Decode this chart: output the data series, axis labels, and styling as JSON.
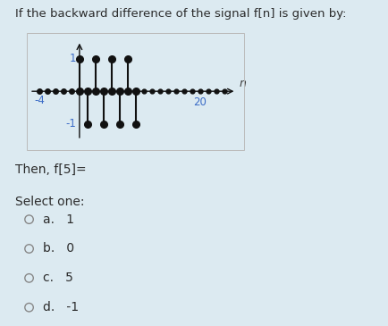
{
  "bg_color": "#dceaf1",
  "plot_bg_color": "#ffffff",
  "title_text": "If the backward difference of the signal f[n] is given by:",
  "title_color": "#2c2c2c",
  "title_fontsize": 9.5,
  "question_text": "Then, f[5]=",
  "select_text": "Select one:",
  "options": [
    {
      "label": "a.",
      "value": "1"
    },
    {
      "label": "b.",
      "value": "0"
    },
    {
      "label": "c.",
      "value": "5"
    },
    {
      "label": "d.",
      "value": "-1"
    }
  ],
  "signal": {
    "stems_up": [
      0,
      2,
      4,
      6
    ],
    "stems_down": [
      1,
      3,
      5,
      7
    ],
    "zero_dots_left": [
      -5,
      -4,
      -3,
      -2,
      -1
    ],
    "zero_dots_right": [
      8,
      9,
      10,
      11,
      12,
      13,
      14,
      15,
      16,
      17,
      18
    ]
  },
  "stem_color": "#111111",
  "dot_color": "#111111",
  "axis_color": "#111111",
  "label_color_blue": "#3b6cc7",
  "n_label_color": "#3b3b3b"
}
